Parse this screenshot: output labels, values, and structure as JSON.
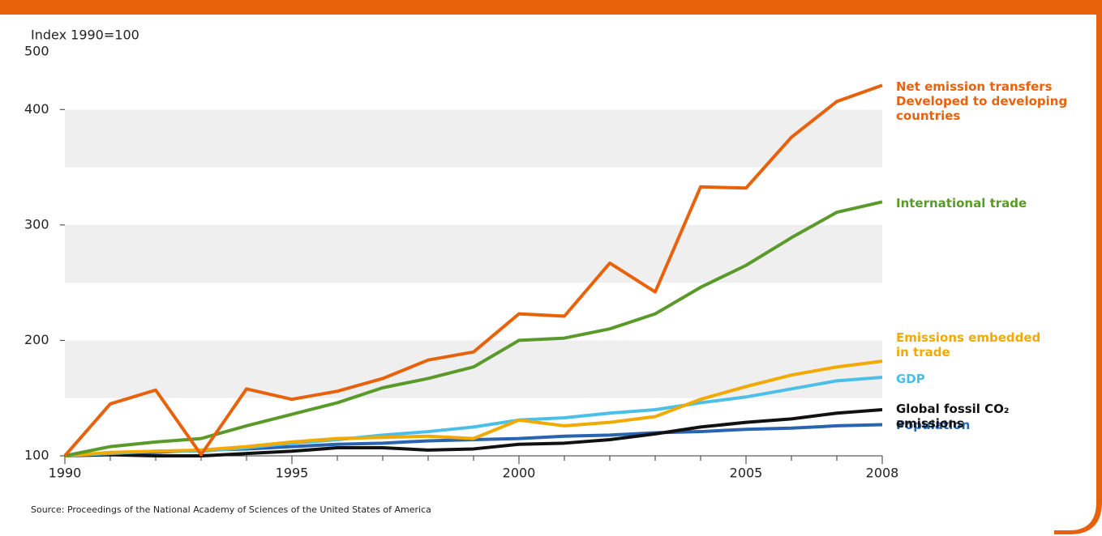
{
  "chart_data": {
    "type": "line",
    "y_axis_label": "Index 1990=100",
    "axis_top_label": "500",
    "source": "Source: Proceedings of the National Academy of Sciences of the United States of America",
    "x": [
      1990,
      1991,
      1992,
      1993,
      1994,
      1995,
      1996,
      1997,
      1998,
      1999,
      2000,
      2001,
      2002,
      2003,
      2004,
      2005,
      2006,
      2007,
      2008
    ],
    "xlim": [
      1990,
      2008
    ],
    "xticks": [
      1990,
      1995,
      2000,
      2005,
      2008
    ],
    "ylim": [
      100,
      450
    ],
    "yticks": [
      100,
      200,
      300,
      400
    ],
    "series": [
      {
        "name": "Population",
        "color": "#2a63b0",
        "values": [
          100,
          102,
          103,
          105,
          106,
          108,
          110,
          111,
          113,
          114,
          115,
          117,
          118,
          120,
          121,
          123,
          124,
          126,
          127
        ]
      },
      {
        "name": "Global fossil CO₂ emissions",
        "color": "#111111",
        "values": [
          100,
          101,
          100,
          100,
          102,
          104,
          107,
          107,
          105,
          106,
          110,
          111,
          114,
          119,
          125,
          129,
          132,
          137,
          140
        ]
      },
      {
        "name": "GDP",
        "color": "#4cbfe8",
        "values": [
          100,
          102,
          104,
          104,
          107,
          111,
          114,
          118,
          121,
          125,
          131,
          133,
          137,
          140,
          146,
          151,
          158,
          165,
          168
        ]
      },
      {
        "name": "Emissions embedded in trade",
        "color": "#f2a900",
        "values": [
          100,
          103,
          104,
          105,
          108,
          112,
          115,
          116,
          117,
          115,
          131,
          126,
          129,
          134,
          149,
          160,
          170,
          177,
          182
        ]
      },
      {
        "name": "International trade",
        "color": "#5a9a2a",
        "values": [
          100,
          108,
          112,
          115,
          126,
          136,
          146,
          159,
          167,
          177,
          200,
          202,
          210,
          223,
          246,
          265,
          289,
          311,
          320
        ]
      },
      {
        "name": "Net emission transfers Developed to developing countries",
        "color": "#e8620c",
        "values": [
          100,
          145,
          157,
          101,
          158,
          149,
          156,
          167,
          183,
          190,
          223,
          221,
          267,
          242,
          333,
          332,
          376,
          407,
          421
        ]
      }
    ]
  }
}
